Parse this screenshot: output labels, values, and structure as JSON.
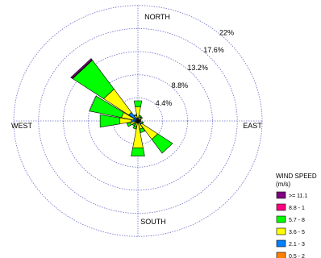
{
  "chart_data": {
    "type": "windrose",
    "directions": {
      "north": "NORTH",
      "south": "SOUTH",
      "east": "EAST",
      "west": "WEST"
    },
    "ring_labels": [
      "4.4%",
      "8.8%",
      "13.2%",
      "17.6%",
      "22%"
    ],
    "ring_values": [
      4.4,
      8.8,
      13.2,
      17.6,
      22
    ],
    "legend": {
      "title": "WIND SPEED",
      "units": "(m/s)",
      "entries": [
        {
          "label": ">= 11.1",
          "color": "#800080"
        },
        {
          "label": "8.8 - 1",
          "color": "#ff0080"
        },
        {
          "label": "5.7 - 8",
          "color": "#00ff00"
        },
        {
          "label": "3.6 - 5",
          "color": "#ffff00"
        },
        {
          "label": "2.1 - 3",
          "color": "#0080ff"
        },
        {
          "label": "0.5 - 2",
          "color": "#ff8000"
        }
      ]
    },
    "grid": true,
    "sector_width_deg": 22.5,
    "sectors": [
      {
        "direction_deg": 0,
        "cumulative_pct": [
          0,
          0.6,
          2.7,
          3.9,
          3.9,
          3.9
        ]
      },
      {
        "direction_deg": 22.5,
        "cumulative_pct": [
          0,
          0.3,
          0.8,
          1.1,
          1.1,
          1.1
        ]
      },
      {
        "direction_deg": 45,
        "cumulative_pct": [
          0,
          0.3,
          0.8,
          1.0,
          1.0,
          1.0
        ]
      },
      {
        "direction_deg": 67.5,
        "cumulative_pct": [
          0,
          0.2,
          0.5,
          0.6,
          0.6,
          0.6
        ]
      },
      {
        "direction_deg": 90,
        "cumulative_pct": [
          0,
          0.2,
          0.4,
          0.5,
          0.5,
          0.5
        ]
      },
      {
        "direction_deg": 112.5,
        "cumulative_pct": [
          0,
          0.3,
          0.8,
          1.0,
          1.0,
          1.0
        ]
      },
      {
        "direction_deg": 135,
        "cumulative_pct": [
          0,
          0.8,
          4.3,
          7.5,
          7.5,
          7.5
        ]
      },
      {
        "direction_deg": 157.5,
        "cumulative_pct": [
          0,
          0.4,
          1.6,
          2.3,
          2.3,
          2.3
        ]
      },
      {
        "direction_deg": 180,
        "cumulative_pct": [
          0,
          0.4,
          5.2,
          6.8,
          6.8,
          6.8
        ]
      },
      {
        "direction_deg": 202.5,
        "cumulative_pct": [
          0,
          0.4,
          1.1,
          1.6,
          1.6,
          1.6
        ]
      },
      {
        "direction_deg": 225,
        "cumulative_pct": [
          0,
          0.4,
          0.8,
          1.2,
          1.2,
          1.2
        ]
      },
      {
        "direction_deg": 247.5,
        "cumulative_pct": [
          0,
          0.6,
          1.4,
          2.0,
          2.0,
          2.0
        ]
      },
      {
        "direction_deg": 270,
        "cumulative_pct": [
          0,
          1.2,
          3.3,
          6.8,
          6.8,
          6.8
        ]
      },
      {
        "direction_deg": 292.5,
        "cumulative_pct": [
          0,
          0.8,
          3.0,
          8.8,
          8.8,
          8.8
        ]
      },
      {
        "direction_deg": 315,
        "cumulative_pct": [
          0,
          2.0,
          7.4,
          14.1,
          14.2,
          14.5
        ]
      },
      {
        "direction_deg": 337.5,
        "cumulative_pct": [
          0,
          0.6,
          1.1,
          1.3,
          1.3,
          1.3
        ]
      }
    ]
  }
}
